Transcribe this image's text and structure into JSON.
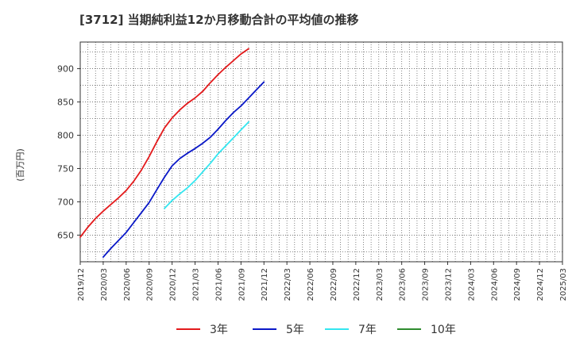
{
  "chart_data": {
    "type": "line",
    "title": "[3712]  当期純利益12か月移動合計の平均値の推移",
    "ylabel": "(百万円)",
    "xlabel": "",
    "x_ticks": [
      "2019/12",
      "2020/03",
      "2020/06",
      "2020/09",
      "2020/12",
      "2021/03",
      "2021/06",
      "2021/09",
      "2021/12",
      "2022/03",
      "2022/06",
      "2022/09",
      "2022/12",
      "2023/03",
      "2023/06",
      "2023/09",
      "2023/12",
      "2024/03",
      "2024/06",
      "2024/09",
      "2024/12",
      "2025/03"
    ],
    "y_ticks": [
      650,
      700,
      750,
      800,
      850,
      900
    ],
    "ylim": [
      610,
      940
    ],
    "grid": true,
    "legend_position": "bottom",
    "series": [
      {
        "name": "3年",
        "color": "#e31a1c",
        "start_index": 0,
        "values": [
          647,
          662,
          675,
          686,
          696,
          706,
          717,
          731,
          748,
          768,
          790,
          811,
          826,
          838,
          848,
          856,
          866,
          879,
          891,
          902,
          912,
          922,
          930
        ]
      },
      {
        "name": "5年",
        "color": "#0a18c8",
        "start_index": 3,
        "values": [
          617,
          630,
          642,
          654,
          669,
          684,
          699,
          718,
          737,
          754,
          765,
          773,
          780,
          788,
          797,
          809,
          822,
          834,
          844,
          856,
          868,
          880
        ]
      },
      {
        "name": "7年",
        "color": "#33e6f0",
        "start_index": 11,
        "values": [
          690,
          702,
          712,
          721,
          732,
          745,
          758,
          772,
          784,
          796,
          808,
          820
        ]
      },
      {
        "name": "10年",
        "color": "#2e8b2e",
        "start_index": 0,
        "values": []
      }
    ]
  }
}
